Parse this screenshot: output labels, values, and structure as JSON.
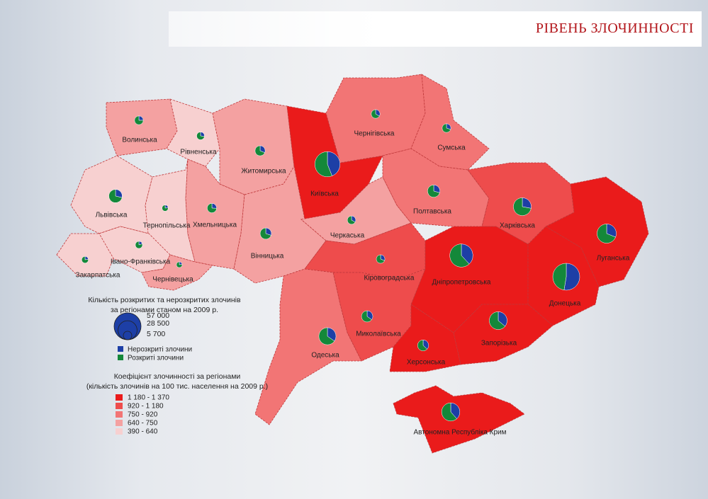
{
  "header": {
    "title": "РІВЕНЬ ЗЛОЧИННОСТІ"
  },
  "chart_data": {
    "type": "map",
    "regions": [
      {
        "name": "Волинська",
        "class": 3,
        "unsolved": 1500,
        "solved": 4500
      },
      {
        "name": "Рівненська",
        "class": 4,
        "unsolved": 1300,
        "solved": 3500
      },
      {
        "name": "Житомирська",
        "class": 3,
        "unsolved": 2500,
        "solved": 5500
      },
      {
        "name": "Київська",
        "class": 0,
        "unsolved": 22000,
        "solved": 28000
      },
      {
        "name": "Чернігівська",
        "class": 2,
        "unsolved": 2000,
        "solved": 4000
      },
      {
        "name": "Сумська",
        "class": 2,
        "unsolved": 1800,
        "solved": 4200
      },
      {
        "name": "Львівська",
        "class": 4,
        "unsolved": 4000,
        "solved": 10000
      },
      {
        "name": "Тернопільська",
        "class": 4,
        "unsolved": 700,
        "solved": 2300
      },
      {
        "name": "Хмельницька",
        "class": 3,
        "unsolved": 1800,
        "solved": 5200
      },
      {
        "name": "Вінницька",
        "class": 3,
        "unsolved": 3000,
        "solved": 7000
      },
      {
        "name": "Черкаська",
        "class": 3,
        "unsolved": 1800,
        "solved": 3700
      },
      {
        "name": "Полтавська",
        "class": 2,
        "unsolved": 3500,
        "solved": 8500
      },
      {
        "name": "Харківська",
        "class": 1,
        "unsolved": 7000,
        "solved": 18000
      },
      {
        "name": "Луганська",
        "class": 0,
        "unsolved": 9000,
        "solved": 20000
      },
      {
        "name": "Закарпатська",
        "class": 4,
        "unsolved": 800,
        "solved": 2700
      },
      {
        "name": "Івано-Франківська",
        "class": 4,
        "unsolved": 800,
        "solved": 3200
      },
      {
        "name": "Чернівецька",
        "class": 3,
        "unsolved": 600,
        "solved": 2000
      },
      {
        "name": "Кіровоградська",
        "class": 1,
        "unsolved": 1800,
        "solved": 4000
      },
      {
        "name": "Дніпропетровська",
        "class": 0,
        "unsolved": 16000,
        "solved": 26000
      },
      {
        "name": "Донецька",
        "class": 0,
        "unsolved": 30000,
        "solved": 27000
      },
      {
        "name": "Миколаївська",
        "class": 1,
        "unsolved": 3500,
        "solved": 6500
      },
      {
        "name": "Одеська",
        "class": 2,
        "unsolved": 8000,
        "solved": 15000
      },
      {
        "name": "Запорізька",
        "class": 0,
        "unsolved": 9000,
        "solved": 16000
      },
      {
        "name": "Херсонська",
        "class": 0,
        "unsolved": 3500,
        "solved": 6000
      },
      {
        "name": "Автономна Республіка Крим",
        "class": 0,
        "unsolved": 10000,
        "solved": 16000
      }
    ],
    "size_legend": {
      "title": [
        "Кількість розкритих та нерозкритих злочинів",
        "за регіонами станом на 2009 р."
      ],
      "sizes": [
        {
          "value": 57000,
          "label": "57 000"
        },
        {
          "value": 28500,
          "label": "28 500"
        },
        {
          "value": 5700,
          "label": "5 700"
        }
      ]
    },
    "series": [
      {
        "name": "Нерозкриті злочини",
        "color": "#1d3fa6"
      },
      {
        "name": "Розкриті злочини",
        "color": "#14883a"
      }
    ],
    "class_legend": {
      "title": [
        "Коефіцієнт злочинності за регіонами",
        "(кількість злочинів на 100 тис. населення на 2009 р.)"
      ],
      "classes": [
        {
          "label": "1 180 - 1 370",
          "color": "#ea1b1b"
        },
        {
          "label": "920 - 1 180",
          "color": "#ee4c4c"
        },
        {
          "label": "750 -   920",
          "color": "#f27575"
        },
        {
          "label": "640 -   750",
          "color": "#f4a1a1"
        },
        {
          "label": "390 -   640",
          "color": "#f7d0d0"
        }
      ]
    }
  }
}
